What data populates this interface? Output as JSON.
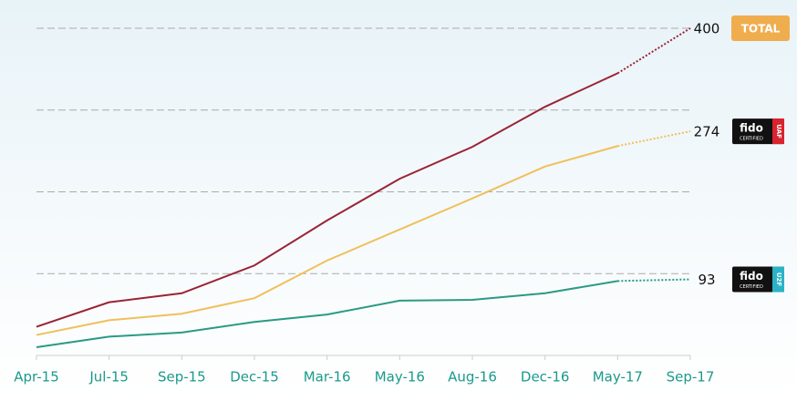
{
  "chart_data": {
    "type": "line",
    "categories": [
      "Apr-15",
      "Jul-15",
      "Sep-15",
      "Dec-15",
      "Mar-16",
      "May-16",
      "Aug-16",
      "Dec-16",
      "May-17",
      "Sep-17"
    ],
    "series": [
      {
        "name": "TOTAL",
        "color": "#9b2335",
        "values": [
          35,
          65,
          76,
          110,
          165,
          216,
          255,
          304,
          345,
          400
        ]
      },
      {
        "name": "UAF",
        "color": "#f0c05a",
        "values": [
          25,
          43,
          51,
          70,
          116,
          154,
          192,
          231,
          256,
          274
        ]
      },
      {
        "name": "U2F",
        "color": "#2a9a85",
        "values": [
          10,
          23,
          28,
          41,
          50,
          67,
          68,
          76,
          91,
          93
        ]
      }
    ],
    "badge_text": "fido",
    "badge_subtext": "CERTIFIED",
    "ylim": [
      0,
      400
    ],
    "yticks": [
      100,
      200,
      300,
      400
    ],
    "grid": true
  }
}
